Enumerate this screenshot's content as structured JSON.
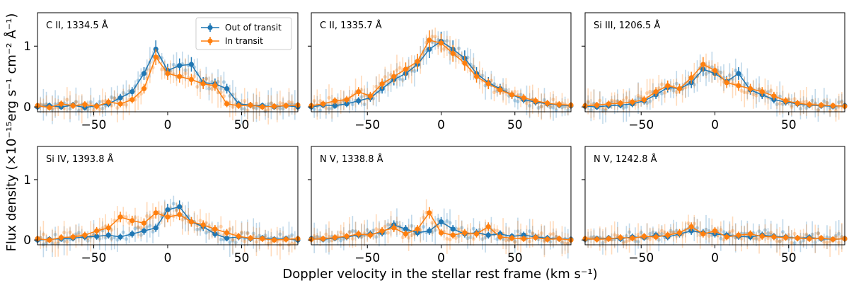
{
  "chart_data": {
    "type": "line",
    "xlabel": "Doppler velocity in the stellar rest frame (km s⁻¹)",
    "ylabel": "Flux density (×10⁻¹⁵erg s⁻¹ cm⁻² Å⁻¹)",
    "xlim": [
      -88,
      88
    ],
    "ylim_top": [
      -0.08,
      1.55
    ],
    "ylim_bottom": [
      -0.08,
      1.55
    ],
    "xticks": [
      -50,
      0,
      50
    ],
    "xtick_labels": [
      "−50",
      "0",
      "50"
    ],
    "yticks": [
      0,
      1
    ],
    "ytick_labels": [
      "0",
      "1"
    ],
    "legend": {
      "placement": "top-right of first panel",
      "entries": [
        "Out of transit",
        "In transit"
      ]
    },
    "colors": {
      "out": "#1f77b4",
      "in": "#ff7f0e"
    },
    "x": [
      -88,
      -80,
      -72,
      -64,
      -56,
      -48,
      -40,
      -32,
      -24,
      -16,
      -8,
      0,
      8,
      16,
      24,
      32,
      40,
      48,
      56,
      64,
      72,
      80,
      88
    ],
    "panels": [
      {
        "title": "C II, 1334.5 Å",
        "series": [
          {
            "name": "Out of transit",
            "values": [
              0.0,
              0.02,
              0.0,
              0.03,
              -0.01,
              0.02,
              0.05,
              0.15,
              0.25,
              0.55,
              0.95,
              0.6,
              0.68,
              0.7,
              0.4,
              0.38,
              0.3,
              0.05,
              0.03,
              0.02,
              0.0,
              0.02,
              0.0
            ]
          },
          {
            "name": "In transit",
            "values": [
              0.02,
              -0.01,
              0.05,
              0.02,
              0.04,
              0.01,
              0.08,
              0.05,
              0.12,
              0.3,
              0.82,
              0.55,
              0.5,
              0.45,
              0.38,
              0.35,
              0.05,
              0.02,
              0.03,
              0.0,
              0.01,
              0.02,
              0.03
            ]
          }
        ]
      },
      {
        "title": "C II, 1335.7 Å",
        "series": [
          {
            "name": "Out of transit",
            "values": [
              0.0,
              0.03,
              0.02,
              0.05,
              0.1,
              0.15,
              0.3,
              0.45,
              0.55,
              0.7,
              0.95,
              1.08,
              0.95,
              0.8,
              0.55,
              0.4,
              0.3,
              0.2,
              0.12,
              0.08,
              0.05,
              0.03,
              0.02
            ]
          },
          {
            "name": "In transit",
            "values": [
              0.02,
              0.05,
              0.1,
              0.12,
              0.25,
              0.18,
              0.38,
              0.5,
              0.62,
              0.75,
              1.1,
              1.05,
              0.88,
              0.72,
              0.5,
              0.38,
              0.28,
              0.2,
              0.15,
              0.1,
              0.06,
              0.04,
              0.03
            ]
          }
        ]
      },
      {
        "title": "Si III, 1206.5 Å",
        "series": [
          {
            "name": "Out of transit",
            "values": [
              0.01,
              0.0,
              0.02,
              0.03,
              0.05,
              0.1,
              0.2,
              0.32,
              0.3,
              0.4,
              0.62,
              0.55,
              0.42,
              0.55,
              0.28,
              0.2,
              0.12,
              0.08,
              0.05,
              0.03,
              0.02,
              0.01,
              0.02
            ]
          },
          {
            "name": "In transit",
            "values": [
              0.02,
              0.03,
              0.05,
              0.06,
              0.08,
              0.12,
              0.25,
              0.35,
              0.3,
              0.48,
              0.7,
              0.6,
              0.4,
              0.35,
              0.3,
              0.25,
              0.18,
              0.1,
              0.06,
              0.04,
              0.03,
              0.02,
              0.01
            ]
          }
        ]
      },
      {
        "title": "Si IV, 1393.8 Å",
        "series": [
          {
            "name": "Out of transit",
            "values": [
              0.0,
              0.01,
              0.02,
              0.03,
              0.05,
              0.06,
              0.08,
              0.05,
              0.1,
              0.15,
              0.2,
              0.5,
              0.55,
              0.3,
              0.22,
              0.1,
              0.03,
              0.05,
              0.02,
              0.03,
              0.01,
              0.02,
              0.0
            ]
          },
          {
            "name": "In transit",
            "values": [
              0.02,
              0.0,
              0.04,
              0.05,
              0.08,
              0.15,
              0.2,
              0.38,
              0.32,
              0.28,
              0.45,
              0.38,
              0.42,
              0.3,
              0.25,
              0.18,
              0.12,
              0.06,
              0.03,
              0.02,
              0.0,
              0.01,
              0.02
            ]
          }
        ]
      },
      {
        "title": "N V, 1338.8 Å",
        "series": [
          {
            "name": "Out of transit",
            "values": [
              0.02,
              0.01,
              0.03,
              0.05,
              0.08,
              0.1,
              0.12,
              0.25,
              0.18,
              0.12,
              0.15,
              0.3,
              0.18,
              0.1,
              0.12,
              0.08,
              0.1,
              0.06,
              0.08,
              0.05,
              0.03,
              0.02,
              0.01
            ]
          },
          {
            "name": "In transit",
            "values": [
              0.01,
              0.02,
              0.04,
              0.06,
              0.1,
              0.08,
              0.15,
              0.2,
              0.1,
              0.18,
              0.45,
              0.12,
              0.08,
              0.12,
              0.1,
              0.22,
              0.05,
              0.03,
              0.02,
              0.04,
              0.01,
              0.02,
              0.0
            ]
          }
        ]
      },
      {
        "title": "N V, 1242.8 Å",
        "series": [
          {
            "name": "Out of transit",
            "values": [
              0.01,
              0.02,
              0.03,
              0.02,
              0.05,
              0.04,
              0.08,
              0.05,
              0.1,
              0.15,
              0.12,
              0.1,
              0.08,
              0.06,
              0.05,
              0.08,
              0.06,
              0.05,
              0.03,
              0.04,
              0.02,
              0.01,
              0.02
            ]
          },
          {
            "name": "In transit",
            "values": [
              0.02,
              0.01,
              0.02,
              0.04,
              0.03,
              0.06,
              0.05,
              0.08,
              0.12,
              0.22,
              0.1,
              0.15,
              0.05,
              0.08,
              0.1,
              0.06,
              0.05,
              0.04,
              0.03,
              0.02,
              0.03,
              0.01,
              0.02
            ]
          }
        ]
      }
    ]
  }
}
